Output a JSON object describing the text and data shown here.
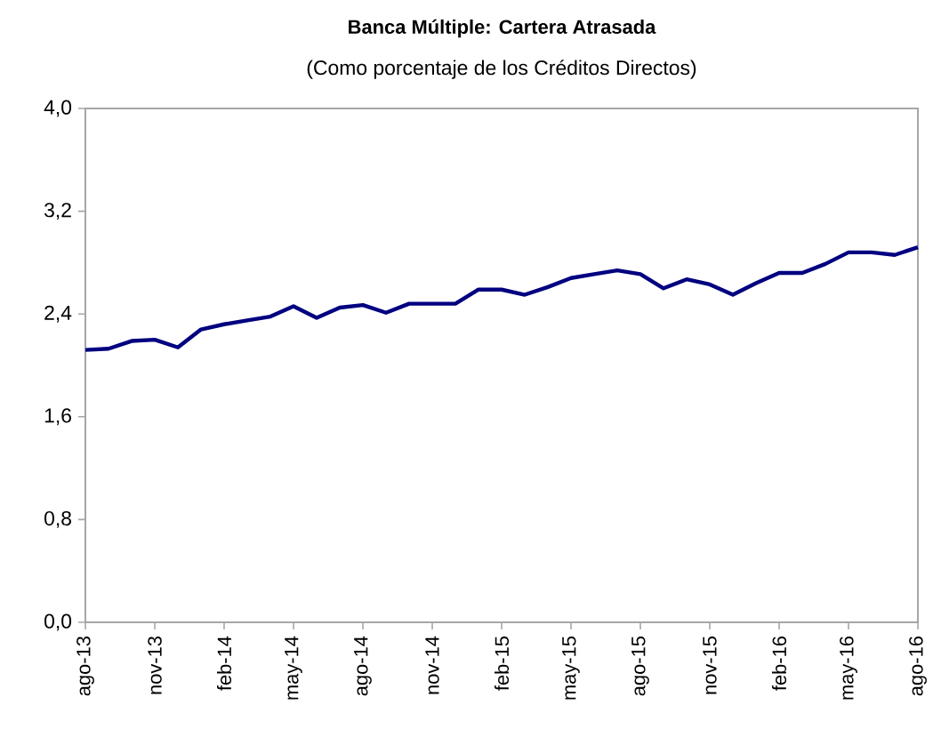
{
  "chart_data": {
    "type": "line",
    "title": "Banca Múltiple: Cartera Atrasada",
    "subtitle": "(Como porcentaje de los Créditos Directos)",
    "categories": [
      "ago-13",
      null,
      null,
      "nov-13",
      null,
      null,
      "feb-14",
      null,
      null,
      "may-14",
      null,
      null,
      "ago-14",
      null,
      null,
      "nov-14",
      null,
      null,
      "feb-15",
      null,
      null,
      "may-15",
      null,
      null,
      "ago-15",
      null,
      null,
      "nov-15",
      null,
      null,
      "feb-16",
      null,
      null,
      "may-16",
      null,
      null,
      "ago-16"
    ],
    "values": [
      2.12,
      2.13,
      2.19,
      2.2,
      2.14,
      2.28,
      2.32,
      2.35,
      2.38,
      2.46,
      2.37,
      2.45,
      2.47,
      2.41,
      2.48,
      2.48,
      2.48,
      2.59,
      2.59,
      2.55,
      2.61,
      2.68,
      2.71,
      2.74,
      2.71,
      2.6,
      2.67,
      2.63,
      2.55,
      2.64,
      2.72,
      2.72,
      2.79,
      2.88,
      2.88,
      2.86,
      2.92
    ],
    "color": "#000080",
    "ylim": [
      0,
      4
    ],
    "yticks": [
      {
        "value": 0,
        "label": "0,0"
      },
      {
        "value": 0.8,
        "label": "0,8"
      },
      {
        "value": 1.6,
        "label": "1,6"
      },
      {
        "value": 2.4,
        "label": "2,4"
      },
      {
        "value": 3.2,
        "label": "3,2"
      },
      {
        "value": 4,
        "label": "4,0"
      }
    ],
    "marker": "none",
    "line_style": "solid"
  }
}
